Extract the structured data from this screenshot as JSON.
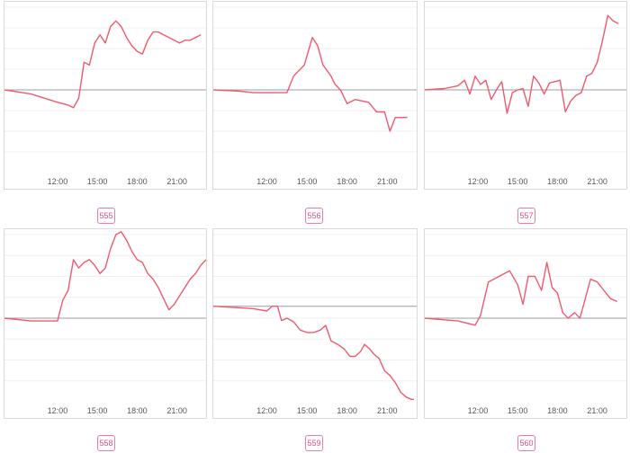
{
  "colors": {
    "line": "#f05a6e",
    "baseline": "#9e9e9e",
    "badge": "#e0507c"
  },
  "x_ticks": [
    "12:00",
    "15:00",
    "18:00",
    "21:00"
  ],
  "chart_data": [
    {
      "type": "line",
      "id": "555",
      "x_range": [
        8,
        23.2
      ],
      "y_range": [
        -3,
        3
      ],
      "x": [
        8,
        10,
        11,
        12,
        12.4,
        12.8,
        13.2,
        13.6,
        14.0,
        14.4,
        14.8,
        15.2,
        15.6,
        16.0,
        16.4,
        16.8,
        17.2,
        17.6,
        18.0,
        18.4,
        18.8,
        19.2,
        19.6,
        20.0,
        20.4,
        20.8,
        21.2,
        21.6,
        22.0,
        22.4,
        22.8
      ],
      "y": [
        0,
        -0.15,
        -0.3,
        -0.45,
        -0.5,
        -0.55,
        -0.65,
        -0.3,
        1.0,
        0.9,
        1.7,
        2.0,
        1.7,
        2.3,
        2.5,
        2.3,
        1.9,
        1.6,
        1.4,
        1.3,
        1.8,
        2.1,
        2.1,
        2.0,
        1.9,
        1.8,
        1.7,
        1.8,
        1.8,
        1.9,
        2.0
      ],
      "ylabel": ""
    },
    {
      "type": "line",
      "id": "556",
      "x_range": [
        8,
        23.2
      ],
      "y_range": [
        -3,
        3
      ],
      "x": [
        8,
        10,
        11,
        13.5,
        14.0,
        14.8,
        15.4,
        15.8,
        16.2,
        16.5,
        16.8,
        17.1,
        17.5,
        18.0,
        18.6,
        19.1,
        19.6,
        20.2,
        20.8,
        21.2,
        21.6,
        22.0,
        22.5
      ],
      "y": [
        0,
        -0.05,
        -0.1,
        -0.1,
        0.5,
        0.9,
        1.9,
        1.6,
        0.9,
        0.7,
        0.5,
        0.2,
        0.0,
        -0.5,
        -0.35,
        -0.4,
        -0.45,
        -0.8,
        -0.8,
        -1.5,
        -1.0,
        -1.0,
        -1.0
      ],
      "ylabel": ""
    },
    {
      "type": "line",
      "id": "557",
      "x_range": [
        8,
        23.2
      ],
      "y_range": [
        -3,
        3
      ],
      "x": [
        8,
        9.5,
        10.5,
        11.0,
        11.4,
        11.8,
        12.2,
        12.6,
        13.0,
        13.4,
        13.8,
        14.2,
        14.6,
        15.0,
        15.4,
        15.8,
        16.2,
        16.6,
        17.0,
        17.4,
        17.8,
        18.2,
        18.6,
        19.0,
        19.4,
        19.8,
        20.2,
        20.6,
        21.0,
        21.4,
        21.8,
        22.2,
        22.6
      ],
      "y": [
        0,
        0.05,
        0.15,
        0.35,
        -0.15,
        0.5,
        0.2,
        0.35,
        -0.35,
        0.0,
        0.3,
        -0.85,
        -0.1,
        0.0,
        0.05,
        -0.6,
        0.5,
        0.25,
        -0.15,
        0.25,
        0.3,
        0.35,
        -0.8,
        -0.4,
        -0.2,
        -0.1,
        0.5,
        0.6,
        1.0,
        1.8,
        2.7,
        2.5,
        2.4
      ],
      "ylabel": ""
    },
    {
      "type": "line",
      "id": "558",
      "x_range": [
        8,
        23.2
      ],
      "y_range": [
        -3,
        3
      ],
      "x": [
        8,
        10,
        12,
        12.4,
        12.8,
        13.2,
        13.6,
        14.0,
        14.4,
        14.8,
        15.2,
        15.6,
        16.0,
        16.4,
        16.8,
        17.2,
        17.6,
        18.0,
        18.4,
        18.8,
        19.2,
        19.6,
        20.0,
        20.4,
        20.8,
        21.2,
        21.6,
        22.0,
        22.4,
        22.8,
        23.2
      ],
      "y": [
        0,
        -0.1,
        -0.1,
        0.65,
        1.0,
        2.1,
        1.8,
        2.0,
        2.1,
        1.9,
        1.6,
        1.8,
        2.5,
        3.0,
        3.1,
        2.8,
        2.4,
        2.1,
        2.0,
        1.6,
        1.4,
        1.1,
        0.7,
        0.3,
        0.5,
        0.8,
        1.1,
        1.4,
        1.6,
        1.9,
        2.1
      ],
      "ylabel": ""
    },
    {
      "type": "line",
      "id": "559",
      "x_range": [
        8,
        23.2
      ],
      "y_range": [
        -4,
        3
      ],
      "x": [
        8,
        11,
        12.0,
        12.4,
        12.8,
        13.1,
        13.5,
        14.0,
        14.5,
        15.0,
        15.5,
        16.0,
        16.4,
        16.8,
        17.3,
        17.8,
        18.2,
        18.6,
        19.0,
        19.3,
        19.7,
        20.0,
        20.4,
        20.8,
        21.2,
        21.6,
        22.0,
        22.4,
        22.8,
        23.0
      ],
      "y": [
        0,
        -0.1,
        -0.2,
        0.0,
        0.0,
        -0.6,
        -0.5,
        -0.65,
        -1.0,
        -1.1,
        -1.1,
        -1.0,
        -0.8,
        -1.45,
        -1.6,
        -1.8,
        -2.1,
        -2.1,
        -1.9,
        -1.6,
        -1.8,
        -2.0,
        -2.2,
        -2.7,
        -2.9,
        -3.2,
        -3.6,
        -3.8,
        -3.9,
        -3.9
      ],
      "ylabel": ""
    },
    {
      "type": "line",
      "id": "560",
      "x_range": [
        8,
        23.2
      ],
      "y_range": [
        -3,
        3
      ],
      "x": [
        8,
        10.5,
        11.8,
        12.2,
        12.8,
        13.6,
        14.4,
        15.0,
        15.4,
        15.8,
        16.3,
        16.8,
        17.2,
        17.6,
        18.0,
        18.4,
        18.8,
        19.3,
        19.7,
        20.1,
        20.5,
        21.0,
        21.5,
        22.0,
        22.5
      ],
      "y": [
        0,
        -0.1,
        -0.25,
        0.1,
        1.3,
        1.5,
        1.7,
        1.2,
        0.5,
        1.5,
        1.5,
        1.0,
        2.0,
        1.1,
        0.9,
        0.2,
        0.0,
        0.2,
        0.0,
        0.7,
        1.4,
        1.3,
        1.0,
        0.7,
        0.6
      ],
      "ylabel": ""
    }
  ]
}
